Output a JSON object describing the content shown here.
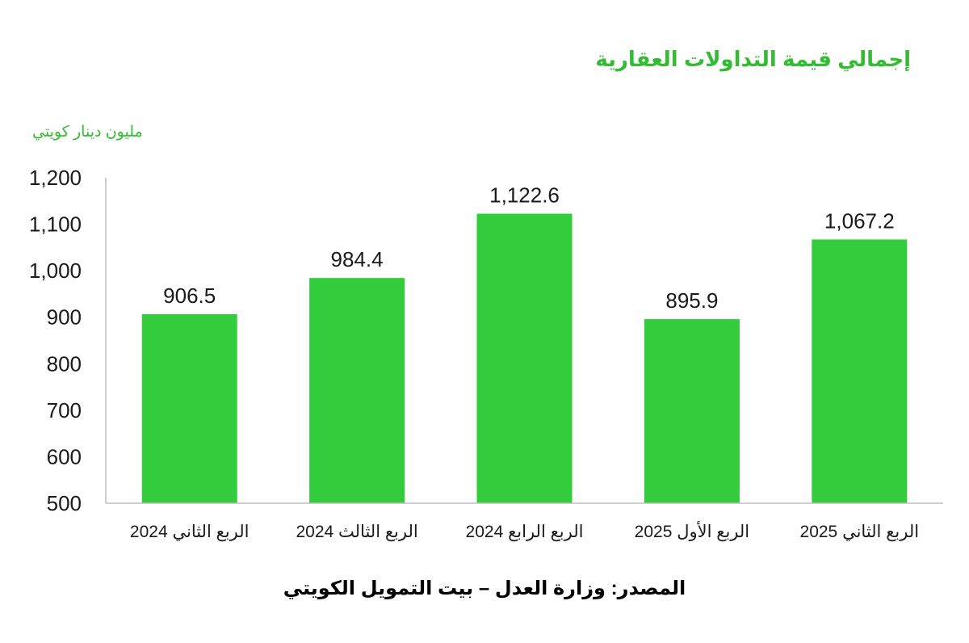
{
  "colors": {
    "title": "#33bb33",
    "bar": "#33cc3c",
    "axis": "#bfbfbf",
    "text": "#1a1a1a"
  },
  "labels": {
    "title": "إجمالي قيمة التداولات العقارية",
    "unit": "مليون دينار كويتي",
    "source": "المصدر: وزارة العدل – بيت التمويل الكويتي"
  },
  "chart_data": {
    "type": "bar",
    "title": "إجمالي قيمة التداولات العقارية",
    "ylabel": "مليون دينار كويتي",
    "xlabel": "",
    "categories": [
      "الربع الثاني 2024",
      "الربع الثالث 2024",
      "الربع الرابع 2024",
      "الربع الأول 2025",
      "الربع الثاني 2025"
    ],
    "values": [
      906.5,
      984.4,
      1122.6,
      895.9,
      1067.2
    ],
    "data_labels": [
      "906.5",
      "984.4",
      "1,122.6",
      "895.9",
      "1,067.2"
    ],
    "yticks": [
      500,
      600,
      700,
      800,
      900,
      1000,
      1100,
      1200
    ],
    "ytick_labels": [
      "500",
      "600",
      "700",
      "800",
      "900",
      "1,000",
      "1,100",
      "1,200"
    ],
    "ylim": [
      500,
      1200
    ],
    "grid": false,
    "legend": "none"
  }
}
